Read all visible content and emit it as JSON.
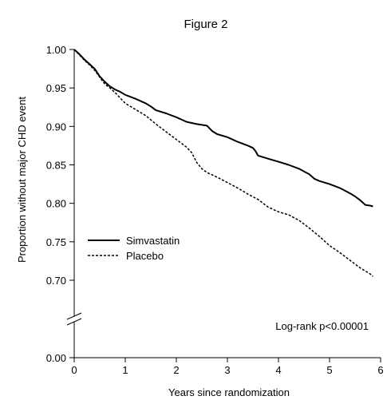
{
  "chart_data": {
    "type": "line",
    "title": "Figure 2",
    "xlabel": "Years since randomization",
    "ylabel": "Proportion without major CHD event",
    "xlim": [
      0,
      6
    ],
    "ylim_upper": [
      0.7,
      1.0
    ],
    "y_break": true,
    "x_ticks": [
      "0",
      "1",
      "2",
      "3",
      "4",
      "5",
      "6"
    ],
    "y_ticks": [
      "1.00",
      "0.95",
      "0.90",
      "0.85",
      "0.80",
      "0.75",
      "0.70",
      "0.00"
    ],
    "legend_placement": "middle-left",
    "annotation": "Log-rank p<0.00001",
    "series": [
      {
        "name": "Simvastatin",
        "line_style": "solid",
        "color": "#000000",
        "points": [
          [
            0.0,
            1.0
          ],
          [
            0.1,
            0.994
          ],
          [
            0.2,
            0.987
          ],
          [
            0.3,
            0.981
          ],
          [
            0.4,
            0.975
          ],
          [
            0.5,
            0.965
          ],
          [
            0.6,
            0.958
          ],
          [
            0.7,
            0.952
          ],
          [
            0.8,
            0.948
          ],
          [
            0.9,
            0.945
          ],
          [
            1.0,
            0.941
          ],
          [
            1.2,
            0.936
          ],
          [
            1.4,
            0.93
          ],
          [
            1.5,
            0.926
          ],
          [
            1.6,
            0.921
          ],
          [
            1.8,
            0.917
          ],
          [
            2.0,
            0.912
          ],
          [
            2.2,
            0.906
          ],
          [
            2.4,
            0.903
          ],
          [
            2.6,
            0.901
          ],
          [
            2.7,
            0.894
          ],
          [
            2.8,
            0.89
          ],
          [
            3.0,
            0.886
          ],
          [
            3.2,
            0.88
          ],
          [
            3.4,
            0.875
          ],
          [
            3.5,
            0.872
          ],
          [
            3.55,
            0.868
          ],
          [
            3.6,
            0.862
          ],
          [
            3.8,
            0.858
          ],
          [
            4.0,
            0.854
          ],
          [
            4.2,
            0.85
          ],
          [
            4.4,
            0.845
          ],
          [
            4.6,
            0.838
          ],
          [
            4.7,
            0.832
          ],
          [
            4.8,
            0.829
          ],
          [
            5.0,
            0.825
          ],
          [
            5.2,
            0.82
          ],
          [
            5.4,
            0.813
          ],
          [
            5.5,
            0.809
          ],
          [
            5.6,
            0.804
          ],
          [
            5.7,
            0.798
          ],
          [
            5.8,
            0.797
          ],
          [
            5.85,
            0.796
          ]
        ]
      },
      {
        "name": "Placebo",
        "line_style": "dashed",
        "color": "#000000",
        "points": [
          [
            0.0,
            1.0
          ],
          [
            0.1,
            0.993
          ],
          [
            0.2,
            0.986
          ],
          [
            0.3,
            0.98
          ],
          [
            0.4,
            0.973
          ],
          [
            0.5,
            0.964
          ],
          [
            0.6,
            0.955
          ],
          [
            0.7,
            0.95
          ],
          [
            0.8,
            0.944
          ],
          [
            0.9,
            0.937
          ],
          [
            1.0,
            0.93
          ],
          [
            1.2,
            0.922
          ],
          [
            1.4,
            0.914
          ],
          [
            1.6,
            0.903
          ],
          [
            1.8,
            0.893
          ],
          [
            2.0,
            0.883
          ],
          [
            2.2,
            0.873
          ],
          [
            2.3,
            0.866
          ],
          [
            2.4,
            0.853
          ],
          [
            2.5,
            0.845
          ],
          [
            2.6,
            0.84
          ],
          [
            2.8,
            0.834
          ],
          [
            3.0,
            0.827
          ],
          [
            3.2,
            0.82
          ],
          [
            3.4,
            0.812
          ],
          [
            3.6,
            0.805
          ],
          [
            3.8,
            0.795
          ],
          [
            4.0,
            0.789
          ],
          [
            4.2,
            0.785
          ],
          [
            4.4,
            0.778
          ],
          [
            4.6,
            0.768
          ],
          [
            4.8,
            0.757
          ],
          [
            5.0,
            0.745
          ],
          [
            5.2,
            0.736
          ],
          [
            5.4,
            0.726
          ],
          [
            5.6,
            0.716
          ],
          [
            5.8,
            0.708
          ],
          [
            5.85,
            0.705
          ]
        ]
      }
    ]
  }
}
